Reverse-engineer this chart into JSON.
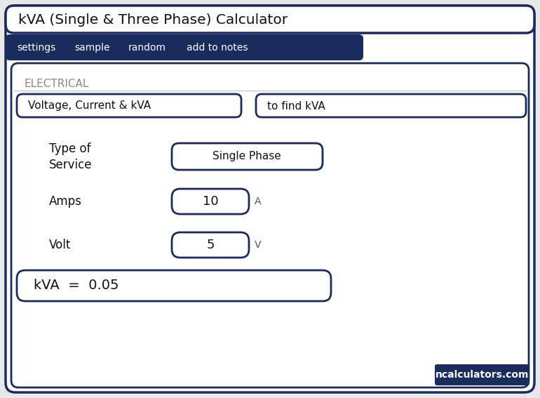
{
  "title": "kVA (Single & Three Phase) Calculator",
  "nav_items": [
    "settings",
    "sample",
    "random",
    "add to notes"
  ],
  "nav_bg": "#1a2b5e",
  "section_label": "ELECTRICAL",
  "input1_label": "Voltage, Current & kVA",
  "input2_label": "to find kVA",
  "row1_label_line1": "Type of",
  "row1_label_line2": "Service",
  "row1_value": "Single Phase",
  "row2_label": "Amps",
  "row2_value": "10",
  "row2_unit": "A",
  "row3_label": "Volt",
  "row3_value": "5",
  "row3_unit": "V",
  "result_label": "kVA  =  0.05",
  "watermark": "ncalculators.com",
  "watermark_bg": "#1a2b5e",
  "border_color": "#1a2b5e",
  "outer_bg": "#e8e8e8",
  "text_color": "#222222",
  "gray_text": "#888888",
  "line_color": "#cccccc"
}
